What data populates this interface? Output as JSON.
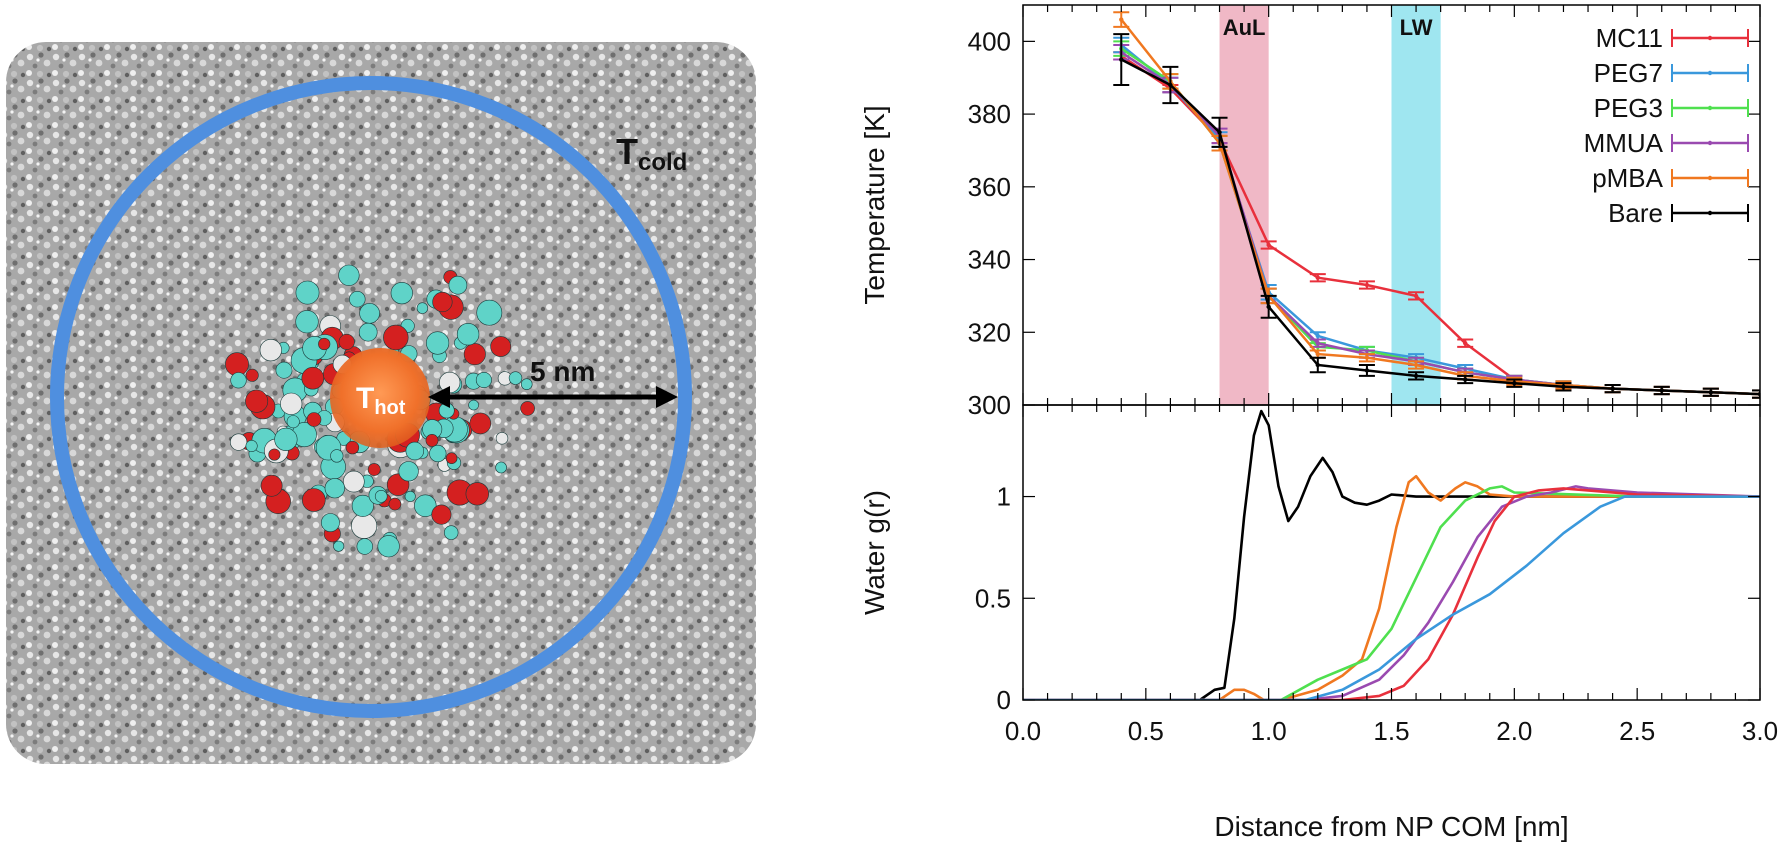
{
  "colors": {
    "MC11": "#e8303c",
    "PEG7": "#3a98dc",
    "PEG3": "#4fe04f",
    "MMUA": "#9a4ab0",
    "pMBA": "#f07820",
    "Bare": "#000000",
    "ring": "#4f8fdf",
    "auL_band": "#f0b8c6",
    "lw_band": "#9fe6f0"
  },
  "simulation_panel": {
    "t_cold_main": "T",
    "t_cold_sub": "cold",
    "t_hot_main": "T",
    "t_hot_sub": "hot",
    "radius_label": "5 nm"
  },
  "chart_data": [
    {
      "type": "line",
      "panel": "top",
      "ylabel": "Temperature [K]",
      "xlim": [
        0.0,
        3.0
      ],
      "ylim": [
        300,
        410
      ],
      "yticks": [
        300,
        320,
        340,
        360,
        380,
        400
      ],
      "bands": [
        {
          "label": "AuL",
          "from": 0.8,
          "to": 1.0,
          "color": "#f0b8c6"
        },
        {
          "label": "LW",
          "from": 1.5,
          "to": 1.7,
          "color": "#9fe6f0"
        }
      ],
      "legend_position": "top-right",
      "series": [
        {
          "name": "MC11",
          "x": [
            0.4,
            0.6,
            0.8,
            1.0,
            1.2,
            1.4,
            1.6,
            1.8,
            2.0,
            2.2,
            2.4,
            2.6,
            2.8,
            3.0
          ],
          "y": [
            396,
            387,
            373,
            344,
            335,
            333,
            330,
            317,
            307,
            305,
            304.5,
            304,
            303.5,
            303
          ],
          "err": [
            1,
            1,
            1,
            1,
            1,
            1,
            1,
            1,
            1,
            1,
            1,
            1,
            1,
            1
          ]
        },
        {
          "name": "PEG7",
          "x": [
            0.4,
            0.6,
            0.8,
            1.0,
            1.2,
            1.4,
            1.6,
            1.8,
            2.0,
            2.2,
            2.4,
            2.6,
            2.8,
            3.0
          ],
          "y": [
            399,
            388,
            373,
            331,
            319,
            315,
            313,
            310,
            307,
            305.5,
            304.5,
            304,
            303.5,
            303
          ],
          "err": [
            2,
            2,
            2,
            2,
            1,
            1,
            1,
            1,
            1,
            1,
            1,
            1,
            1,
            1
          ]
        },
        {
          "name": "PEG3",
          "x": [
            0.4,
            0.6,
            0.8,
            1.0,
            1.2,
            1.4,
            1.6,
            1.8,
            2.0,
            2.2,
            2.4,
            2.6,
            2.8,
            3.0
          ],
          "y": [
            398,
            389,
            372,
            330,
            316,
            315,
            312,
            309,
            307,
            305.5,
            304.5,
            304,
            303.5,
            303
          ],
          "err": [
            2,
            2,
            2,
            2,
            1,
            1,
            1,
            1,
            1,
            1,
            1,
            1,
            1,
            1
          ]
        },
        {
          "name": "MMUA",
          "x": [
            0.4,
            0.6,
            0.8,
            1.0,
            1.2,
            1.4,
            1.6,
            1.8,
            2.0,
            2.2,
            2.4,
            2.6,
            2.8,
            3.0
          ],
          "y": [
            397,
            388,
            374,
            330,
            317,
            314,
            312,
            309,
            307,
            305.5,
            304.5,
            304,
            303.5,
            303
          ],
          "err": [
            2,
            2,
            2,
            2,
            1,
            1,
            1,
            1,
            1,
            1,
            1,
            1,
            1,
            1
          ]
        },
        {
          "name": "pMBA",
          "x": [
            0.4,
            0.6,
            0.8,
            1.0,
            1.2,
            1.4,
            1.6,
            1.8,
            2.0,
            2.2,
            2.4,
            2.6,
            2.8,
            3.0
          ],
          "y": [
            406,
            389,
            372,
            330,
            314,
            313,
            311,
            308,
            306.5,
            305.5,
            304.5,
            304,
            303.5,
            303
          ],
          "err": [
            2,
            2,
            2,
            2,
            1,
            1,
            1,
            1,
            1,
            1,
            1,
            1,
            1,
            1
          ]
        },
        {
          "name": "Bare",
          "x": [
            0.4,
            0.6,
            0.8,
            1.0,
            1.2,
            1.4,
            1.6,
            1.8,
            2.0,
            2.2,
            2.4,
            2.6,
            2.8,
            3.0
          ],
          "y": [
            395,
            388,
            375,
            327,
            311,
            309.5,
            308,
            307,
            306,
            305,
            304.5,
            304,
            303.5,
            303
          ],
          "err": [
            7,
            5,
            4,
            3,
            2,
            1.5,
            1,
            1,
            1,
            1,
            1,
            1,
            1,
            1
          ]
        }
      ]
    },
    {
      "type": "line",
      "panel": "bottom",
      "ylabel": "Water g(r)",
      "xlabel": "Distance from NP COM [nm]",
      "xlim": [
        0.0,
        3.0
      ],
      "ylim": [
        0,
        1.45
      ],
      "yticks": [
        0,
        0.5,
        1
      ],
      "xticks": [
        "0.0",
        "0.5",
        "1.0",
        "1.5",
        "2.0",
        "2.5",
        "3.0"
      ],
      "series": [
        {
          "name": "Bare",
          "x": [
            0,
            0.72,
            0.78,
            0.82,
            0.86,
            0.9,
            0.94,
            0.97,
            1.0,
            1.04,
            1.08,
            1.12,
            1.17,
            1.22,
            1.26,
            1.3,
            1.35,
            1.4,
            1.45,
            1.5,
            1.6,
            1.8,
            2.0,
            2.5,
            3.0
          ],
          "y": [
            0,
            0,
            0.05,
            0.06,
            0.4,
            0.9,
            1.3,
            1.42,
            1.35,
            1.05,
            0.88,
            0.95,
            1.1,
            1.19,
            1.12,
            1.0,
            0.97,
            0.96,
            0.98,
            1.01,
            1.0,
            1.0,
            1.0,
            1.0,
            1.0
          ]
        },
        {
          "name": "pMBA",
          "x": [
            0,
            0.8,
            0.86,
            0.9,
            0.94,
            0.98,
            1.05,
            1.2,
            1.3,
            1.38,
            1.45,
            1.52,
            1.57,
            1.6,
            1.65,
            1.7,
            1.76,
            1.8,
            1.85,
            1.9,
            2.0,
            2.5,
            3.0
          ],
          "y": [
            0,
            0,
            0.05,
            0.05,
            0.03,
            0,
            0,
            0.05,
            0.12,
            0.2,
            0.45,
            0.85,
            1.07,
            1.1,
            1.02,
            0.98,
            1.04,
            1.07,
            1.05,
            1.01,
            1.0,
            1.0,
            1.0
          ]
        },
        {
          "name": "PEG3",
          "x": [
            0,
            1.05,
            1.2,
            1.3,
            1.4,
            1.5,
            1.6,
            1.7,
            1.8,
            1.9,
            1.95,
            2.0,
            2.5,
            3.0
          ],
          "y": [
            0,
            0,
            0.1,
            0.15,
            0.2,
            0.35,
            0.6,
            0.85,
            0.98,
            1.04,
            1.05,
            1.02,
            1.0,
            1.0
          ]
        },
        {
          "name": "MMUA",
          "x": [
            0,
            1.15,
            1.3,
            1.45,
            1.55,
            1.65,
            1.75,
            1.85,
            1.95,
            2.05,
            2.15,
            2.25,
            2.3,
            2.5,
            3.0
          ],
          "y": [
            0,
            0,
            0.02,
            0.1,
            0.22,
            0.38,
            0.58,
            0.8,
            0.95,
            1.0,
            1.02,
            1.05,
            1.04,
            1.02,
            1.0
          ]
        },
        {
          "name": "MC11",
          "x": [
            0,
            1.3,
            1.45,
            1.55,
            1.65,
            1.75,
            1.85,
            1.92,
            2.0,
            2.1,
            2.2,
            2.3,
            2.5,
            3.0
          ],
          "y": [
            0,
            0,
            0.02,
            0.07,
            0.2,
            0.42,
            0.7,
            0.88,
            1.0,
            1.03,
            1.04,
            1.03,
            1.01,
            1.0
          ]
        },
        {
          "name": "PEG7",
          "x": [
            0,
            1.15,
            1.3,
            1.45,
            1.6,
            1.75,
            1.9,
            2.05,
            2.2,
            2.35,
            2.45,
            2.6,
            3.0
          ],
          "y": [
            0,
            0,
            0.05,
            0.15,
            0.3,
            0.42,
            0.52,
            0.66,
            0.82,
            0.95,
            1.0,
            1.0,
            1.0
          ]
        }
      ]
    }
  ]
}
